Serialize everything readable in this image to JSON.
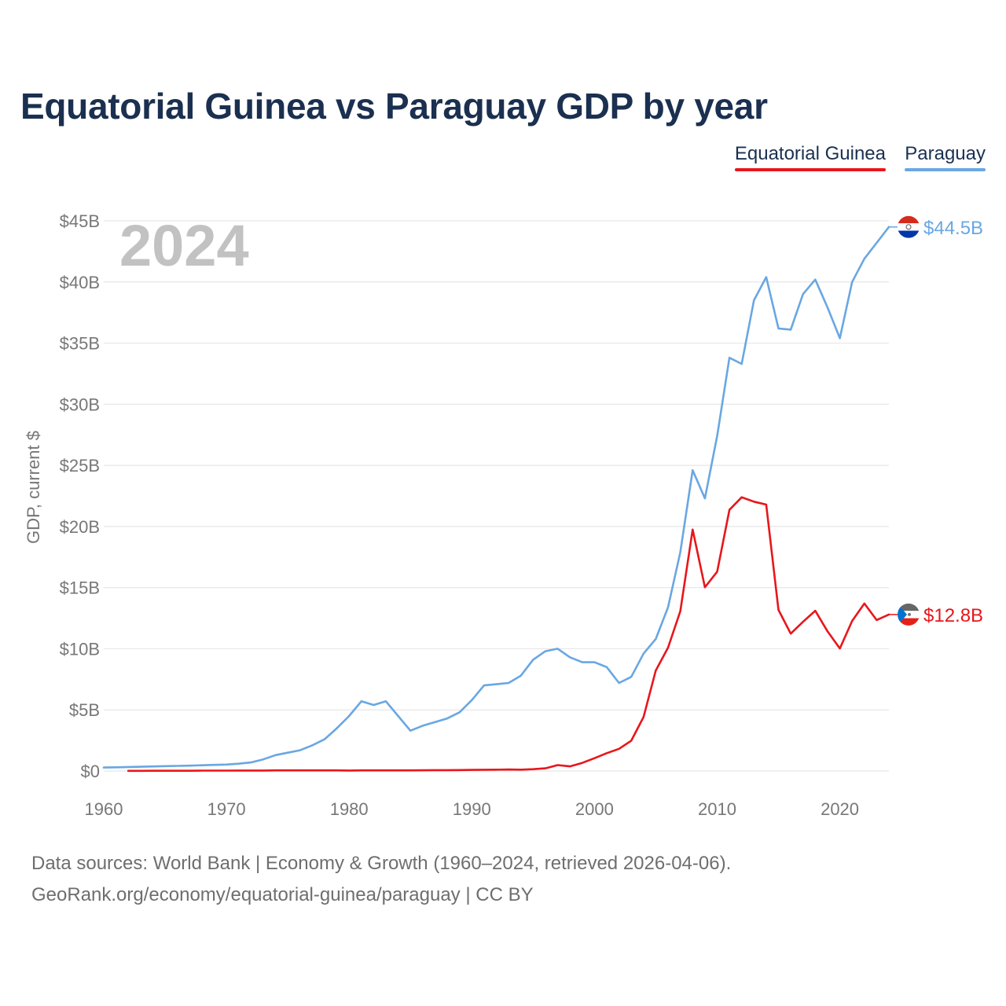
{
  "title": "Equatorial Guinea vs Paraguay GDP by year",
  "year_label": "2024",
  "legend": [
    {
      "name": "Equatorial Guinea",
      "color": "#e8161b"
    },
    {
      "name": "Paraguay",
      "color": "#69a7e2"
    }
  ],
  "footer": {
    "line1": "Data sources: World Bank | Economy & Growth (1960–2024, retrieved 2026-04-06).",
    "line2": "GeoRank.org/economy/equatorial-guinea/paraguay | CC BY"
  },
  "chart_data": {
    "type": "line",
    "title": "Equatorial Guinea vs Paraguay GDP by year",
    "xlabel": "",
    "ylabel": "GDP, current $",
    "xlim": [
      1960,
      2024
    ],
    "ylim": [
      0,
      45
    ],
    "x_ticks": [
      1960,
      1970,
      1980,
      1990,
      2000,
      2010,
      2020
    ],
    "x_tick_labels": [
      "1960",
      "1970",
      "1980",
      "1990",
      "2000",
      "2010",
      "2020"
    ],
    "y_ticks": [
      0,
      5,
      10,
      15,
      20,
      25,
      30,
      35,
      40,
      45
    ],
    "y_tick_labels": [
      "$0",
      "$5B",
      "$10B",
      "$15B",
      "$20B",
      "$25B",
      "$30B",
      "$35B",
      "$40B",
      "$45B"
    ],
    "grid": true,
    "series": [
      {
        "name": "Paraguay",
        "color": "#69a7e2",
        "end_label": "$44.5B",
        "x": [
          1960,
          1961,
          1962,
          1963,
          1964,
          1965,
          1966,
          1967,
          1968,
          1969,
          1970,
          1971,
          1972,
          1973,
          1974,
          1975,
          1976,
          1977,
          1978,
          1979,
          1980,
          1981,
          1982,
          1983,
          1984,
          1985,
          1986,
          1987,
          1988,
          1989,
          1990,
          1991,
          1992,
          1993,
          1994,
          1995,
          1996,
          1997,
          1998,
          1999,
          2000,
          2001,
          2002,
          2003,
          2004,
          2005,
          2006,
          2007,
          2008,
          2009,
          2010,
          2011,
          2012,
          2013,
          2014,
          2015,
          2016,
          2017,
          2018,
          2019,
          2020,
          2021,
          2022,
          2023,
          2024
        ],
        "values": [
          0.28,
          0.3,
          0.33,
          0.35,
          0.37,
          0.4,
          0.42,
          0.44,
          0.47,
          0.5,
          0.53,
          0.6,
          0.7,
          0.95,
          1.3,
          1.5,
          1.7,
          2.1,
          2.6,
          3.5,
          4.5,
          5.7,
          5.4,
          5.7,
          4.5,
          3.3,
          3.7,
          4.0,
          4.3,
          4.8,
          5.8,
          7.0,
          7.1,
          7.2,
          7.8,
          9.1,
          9.8,
          10.0,
          9.3,
          8.9,
          8.9,
          8.5,
          7.2,
          7.7,
          9.6,
          10.8,
          13.4,
          17.9,
          24.6,
          22.3,
          27.4,
          33.8,
          33.3,
          38.5,
          40.4,
          36.2,
          36.1,
          39.0,
          40.2,
          37.9,
          35.4,
          40.0,
          41.9,
          43.2,
          44.5
        ]
      },
      {
        "name": "Equatorial Guinea",
        "color": "#e8161b",
        "end_label": "$12.8B",
        "x": [
          1962,
          1963,
          1964,
          1965,
          1966,
          1967,
          1968,
          1969,
          1970,
          1971,
          1972,
          1973,
          1974,
          1975,
          1976,
          1977,
          1978,
          1979,
          1980,
          1981,
          1982,
          1983,
          1984,
          1985,
          1986,
          1987,
          1988,
          1989,
          1990,
          1991,
          1992,
          1993,
          1994,
          1995,
          1996,
          1997,
          1998,
          1999,
          2000,
          2001,
          2002,
          2003,
          2004,
          2005,
          2006,
          2007,
          2008,
          2009,
          2010,
          2011,
          2012,
          2013,
          2014,
          2015,
          2016,
          2017,
          2018,
          2019,
          2020,
          2021,
          2022,
          2023,
          2024
        ],
        "values": [
          0.01,
          0.01,
          0.02,
          0.02,
          0.02,
          0.02,
          0.03,
          0.03,
          0.03,
          0.04,
          0.04,
          0.04,
          0.05,
          0.05,
          0.05,
          0.05,
          0.05,
          0.05,
          0.04,
          0.05,
          0.05,
          0.05,
          0.05,
          0.05,
          0.06,
          0.07,
          0.07,
          0.08,
          0.09,
          0.1,
          0.11,
          0.12,
          0.11,
          0.15,
          0.22,
          0.48,
          0.38,
          0.66,
          1.05,
          1.46,
          1.81,
          2.48,
          4.41,
          8.22,
          10.09,
          13.07,
          19.75,
          15.03,
          16.3,
          21.36,
          22.39,
          22.03,
          21.79,
          13.18,
          11.24,
          12.2,
          13.11,
          11.42,
          10.02,
          12.27,
          13.7,
          12.35,
          12.8
        ]
      }
    ]
  }
}
